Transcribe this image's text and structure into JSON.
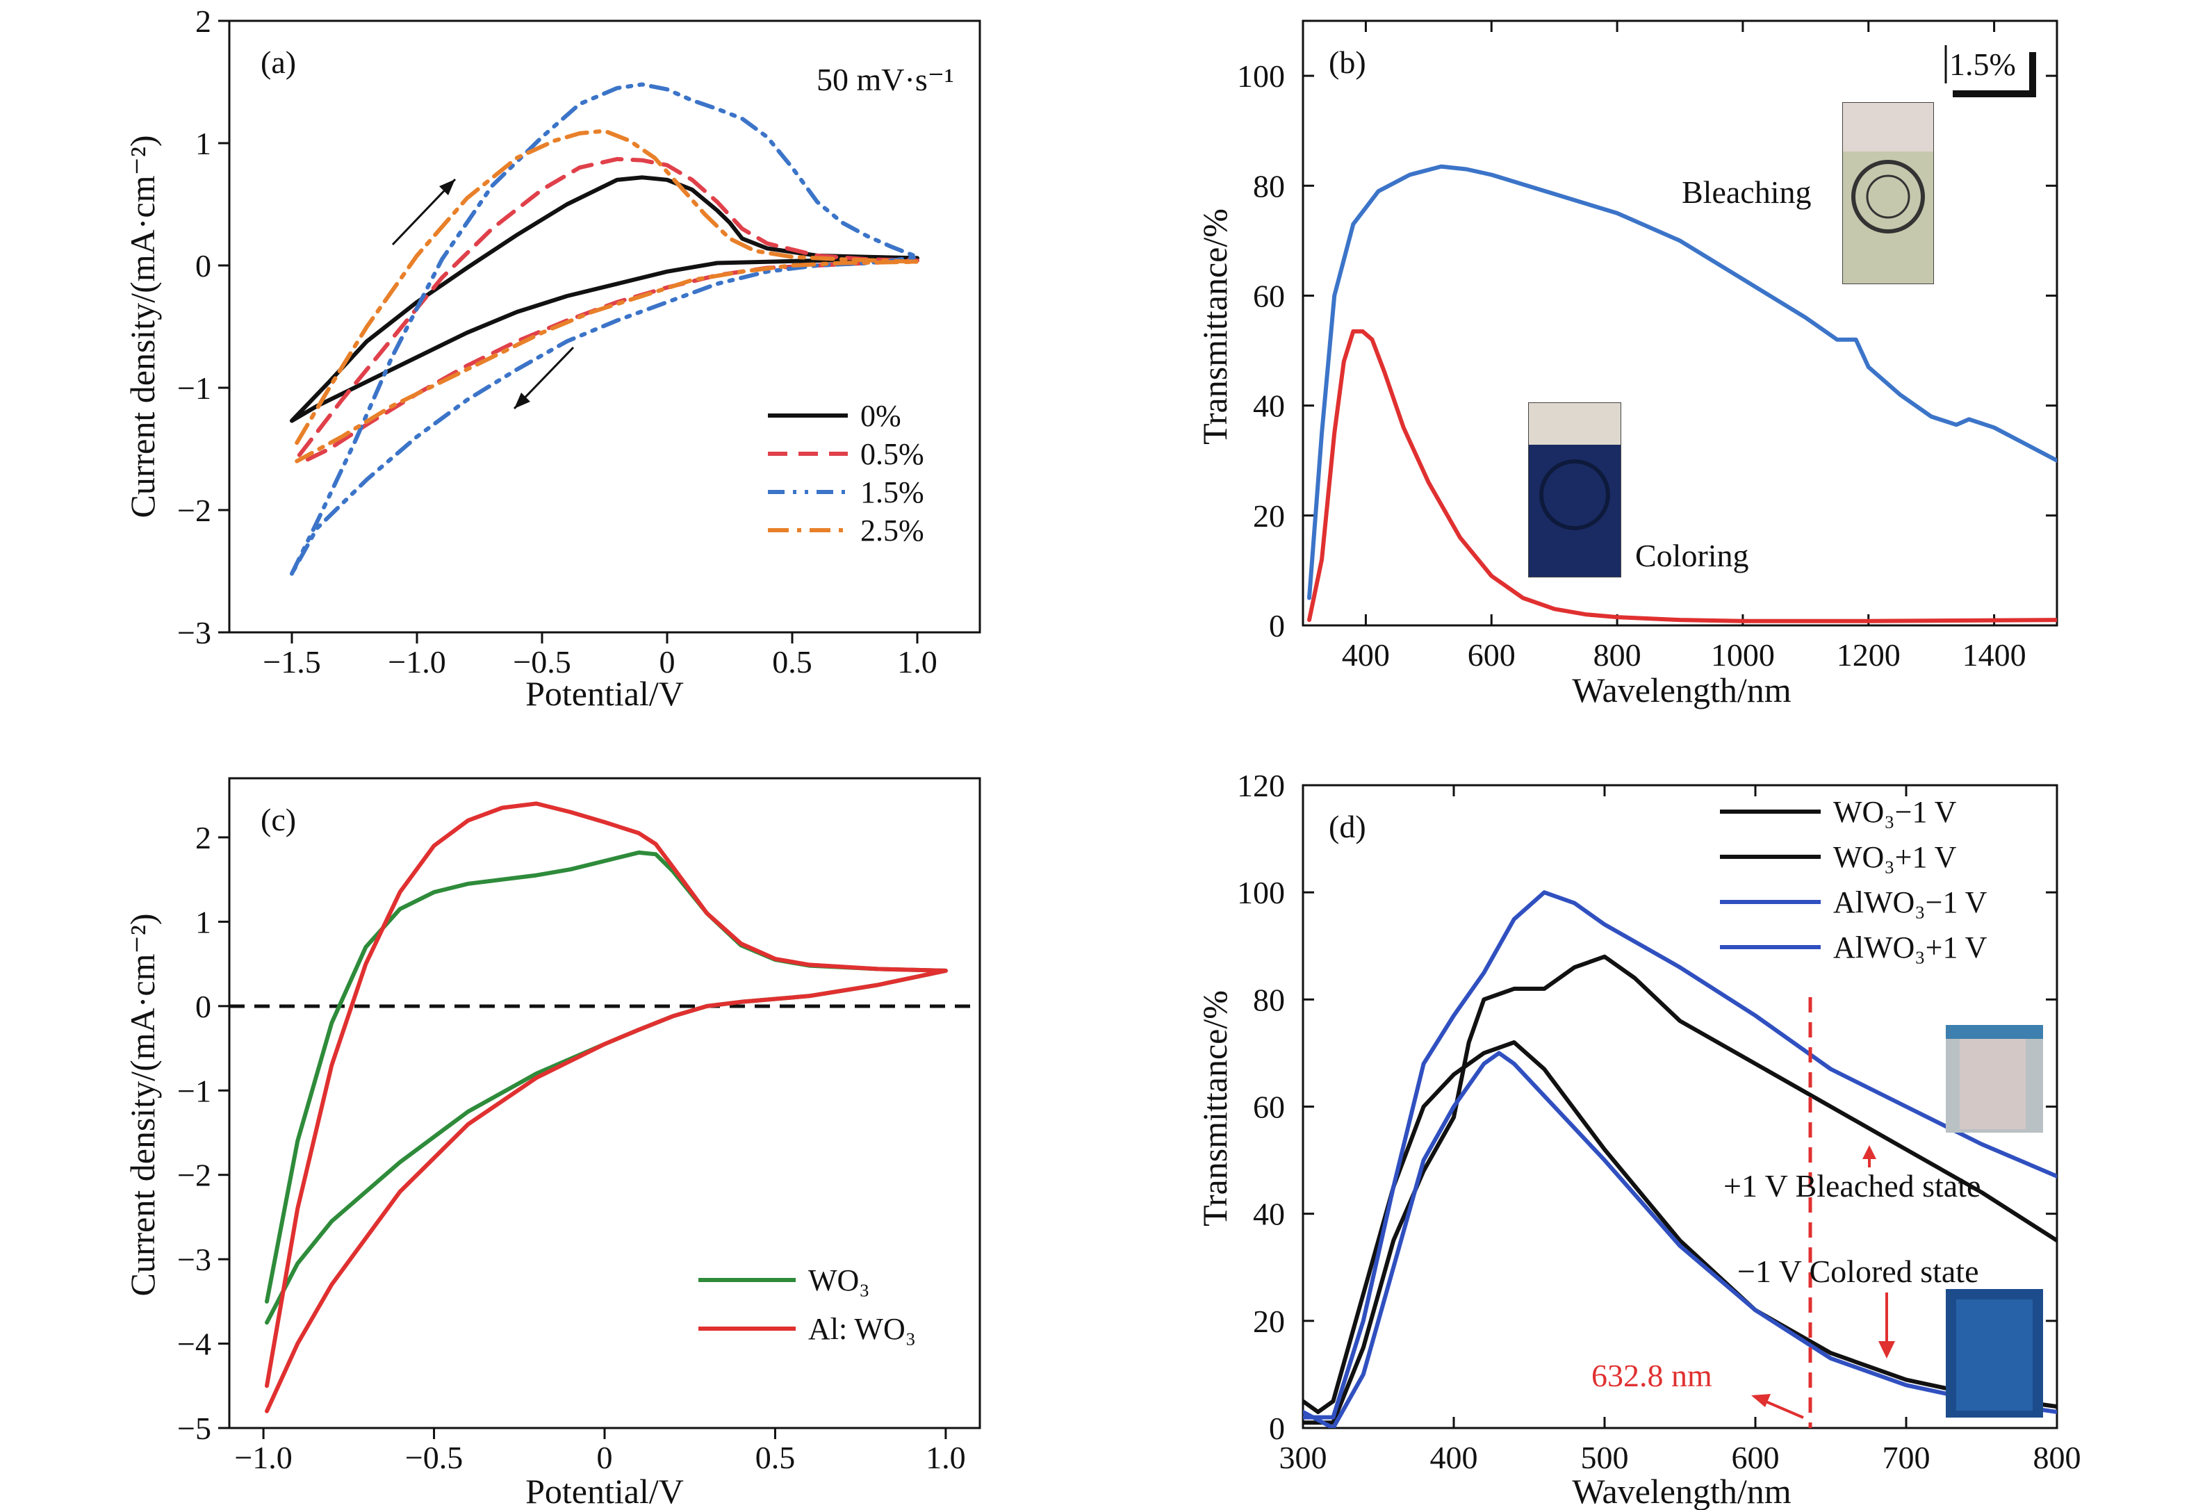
{
  "chart_data": [
    {
      "panel": "(a)",
      "type": "line",
      "xlabel": "Potential/V",
      "ylabel": "Current density/(mA·cm⁻²)",
      "xlim": [
        -1.75,
        1.25
      ],
      "ylim": [
        -3,
        2
      ],
      "xticks": [
        -1.5,
        -1.0,
        -0.5,
        0,
        0.5,
        1.0
      ],
      "xtick_labels": [
        "−1.5",
        "−1.0",
        "−0.5",
        "0",
        "0.5",
        "1.0"
      ],
      "yticks": [
        -3,
        -2,
        -1,
        0,
        1,
        2
      ],
      "ytick_labels": [
        "−3",
        "−2",
        "−1",
        "0",
        "1",
        "2"
      ],
      "legend_position": "bottom-right",
      "annotations": [
        {
          "text": "50 mV·s⁻¹"
        }
      ],
      "series": [
        {
          "name": "0%",
          "color": "#111111",
          "style": "solid",
          "x": [
            -1.5,
            -1.35,
            -1.2,
            -1.0,
            -0.8,
            -0.6,
            -0.4,
            -0.2,
            -0.1,
            0.0,
            0.1,
            0.2,
            0.25,
            0.3,
            0.4,
            0.6,
            0.8,
            1.0,
            0.8,
            0.6,
            0.4,
            0.2,
            0.0,
            -0.2,
            -0.4,
            -0.6,
            -0.8,
            -1.0,
            -1.2,
            -1.4,
            -1.5
          ],
          "y": [
            -1.27,
            -0.95,
            -0.62,
            -0.3,
            -0.02,
            0.25,
            0.5,
            0.7,
            0.72,
            0.7,
            0.62,
            0.45,
            0.35,
            0.22,
            0.14,
            0.08,
            0.07,
            0.06,
            0.05,
            0.04,
            0.03,
            0.02,
            -0.05,
            -0.15,
            -0.25,
            -0.38,
            -0.55,
            -0.75,
            -0.95,
            -1.15,
            -1.27
          ]
        },
        {
          "name": "0.5%",
          "color": "#e0404a",
          "style": "dashed",
          "x": [
            -1.47,
            -1.3,
            -1.1,
            -0.9,
            -0.7,
            -0.5,
            -0.35,
            -0.2,
            -0.1,
            0.0,
            0.1,
            0.2,
            0.3,
            0.4,
            0.6,
            0.8,
            1.0,
            0.8,
            0.6,
            0.4,
            0.2,
            0.0,
            -0.2,
            -0.4,
            -0.6,
            -0.8,
            -1.0,
            -1.2,
            -1.35,
            -1.47
          ],
          "y": [
            -1.55,
            -1.1,
            -0.6,
            -0.1,
            0.3,
            0.62,
            0.8,
            0.87,
            0.86,
            0.82,
            0.7,
            0.52,
            0.3,
            0.18,
            0.08,
            0.05,
            0.04,
            0.02,
            0.0,
            -0.02,
            -0.08,
            -0.18,
            -0.3,
            -0.45,
            -0.62,
            -0.82,
            -1.05,
            -1.3,
            -1.5,
            -1.62
          ]
        },
        {
          "name": "1.5%",
          "color": "#3b74c8",
          "style": "dash-dot-dot",
          "x": [
            -1.5,
            -1.4,
            -1.25,
            -1.1,
            -0.9,
            -0.7,
            -0.5,
            -0.35,
            -0.2,
            -0.1,
            0.0,
            0.1,
            0.2,
            0.3,
            0.4,
            0.5,
            0.6,
            0.7,
            0.8,
            0.9,
            1.0,
            0.9,
            0.8,
            0.6,
            0.4,
            0.2,
            0.0,
            -0.2,
            -0.4,
            -0.6,
            -0.8,
            -1.0,
            -1.2,
            -1.4,
            -1.5
          ],
          "y": [
            -2.52,
            -2.1,
            -1.45,
            -0.75,
            0.05,
            0.65,
            1.05,
            1.32,
            1.45,
            1.48,
            1.44,
            1.35,
            1.28,
            1.2,
            1.05,
            0.8,
            0.52,
            0.35,
            0.24,
            0.15,
            0.07,
            0.04,
            0.02,
            0.0,
            -0.05,
            -0.15,
            -0.3,
            -0.45,
            -0.62,
            -0.85,
            -1.1,
            -1.4,
            -1.75,
            -2.15,
            -2.52
          ]
        },
        {
          "name": "2.5%",
          "color": "#e8802a",
          "style": "dash-dot",
          "x": [
            -1.48,
            -1.35,
            -1.2,
            -1.0,
            -0.8,
            -0.6,
            -0.45,
            -0.35,
            -0.25,
            -0.15,
            -0.05,
            0.05,
            0.15,
            0.25,
            0.35,
            0.5,
            0.7,
            1.0,
            0.7,
            0.5,
            0.3,
            0.1,
            -0.1,
            -0.3,
            -0.5,
            -0.7,
            -0.9,
            -1.1,
            -1.3,
            -1.48
          ],
          "y": [
            -1.45,
            -1.0,
            -0.5,
            0.08,
            0.55,
            0.88,
            1.02,
            1.08,
            1.1,
            1.02,
            0.88,
            0.65,
            0.42,
            0.22,
            0.12,
            0.07,
            0.05,
            0.03,
            0.02,
            0.0,
            -0.05,
            -0.12,
            -0.25,
            -0.38,
            -0.55,
            -0.75,
            -0.95,
            -1.15,
            -1.4,
            -1.6
          ]
        }
      ]
    },
    {
      "panel": "(b)",
      "type": "line",
      "xlabel": "Wavelength/nm",
      "ylabel": "Transmittance/%",
      "xlim": [
        300,
        1500
      ],
      "ylim": [
        0,
        110
      ],
      "xticks": [
        400,
        600,
        800,
        1000,
        1200,
        1400
      ],
      "xtick_labels": [
        "400",
        "600",
        "800",
        "1000",
        "1200",
        "1400"
      ],
      "yticks": [
        0,
        20,
        40,
        60,
        80,
        100
      ],
      "ytick_labels": [
        "0",
        "20",
        "40",
        "60",
        "80",
        "100"
      ],
      "annotations": [
        {
          "text": "1.5%"
        },
        {
          "text": "Bleaching"
        },
        {
          "text": "Coloring"
        }
      ],
      "series": [
        {
          "label": "Bleaching",
          "color": "#3b74c8",
          "x": [
            310,
            330,
            350,
            380,
            420,
            470,
            520,
            560,
            600,
            700,
            800,
            900,
            1000,
            1100,
            1150,
            1180,
            1200,
            1250,
            1300,
            1340,
            1360,
            1400,
            1450,
            1500
          ],
          "y": [
            5,
            35,
            60,
            73,
            79,
            82,
            83.5,
            83,
            82,
            78.5,
            75,
            70,
            63,
            56,
            52,
            52,
            47,
            42,
            38,
            36.5,
            37.5,
            36,
            33,
            30
          ]
        },
        {
          "label": "Coloring",
          "color": "#e03030",
          "x": [
            310,
            330,
            350,
            365,
            380,
            395,
            410,
            430,
            460,
            500,
            550,
            600,
            650,
            700,
            750,
            800,
            900,
            1000,
            1200,
            1500
          ],
          "y": [
            1,
            12,
            35,
            48,
            53.5,
            53.5,
            52,
            46,
            36,
            26,
            16,
            9,
            5,
            3,
            2,
            1.5,
            1,
            0.8,
            0.8,
            1
          ]
        }
      ]
    },
    {
      "panel": "(c)",
      "type": "line",
      "xlabel": "Potential/V",
      "ylabel": "Current density/(mA·cm⁻²)",
      "xlim": [
        -1.1,
        1.1
      ],
      "ylim": [
        -5,
        2.7
      ],
      "xticks": [
        -1.0,
        -0.5,
        0,
        0.5,
        1.0
      ],
      "xtick_labels": [
        "−1.0",
        "−0.5",
        "0",
        "0.5",
        "1.0"
      ],
      "yticks": [
        -5,
        -4,
        -3,
        -2,
        -1,
        0,
        1,
        2
      ],
      "ytick_labels": [
        "−5",
        "−4",
        "−3",
        "−2",
        "−1",
        "0",
        "1",
        "2"
      ],
      "legend_position": "bottom-right",
      "series": [
        {
          "name": "WO₃",
          "color": "#2e8b3a",
          "x": [
            -0.99,
            -0.9,
            -0.8,
            -0.7,
            -0.6,
            -0.5,
            -0.4,
            -0.3,
            -0.2,
            -0.1,
            0.0,
            0.1,
            0.15,
            0.2,
            0.3,
            0.4,
            0.5,
            0.6,
            0.8,
            1.0,
            0.8,
            0.6,
            0.4,
            0.3,
            0.2,
            0.1,
            0.0,
            -0.2,
            -0.4,
            -0.6,
            -0.8,
            -0.9,
            -0.99
          ],
          "y": [
            -3.5,
            -1.6,
            -0.2,
            0.7,
            1.15,
            1.35,
            1.45,
            1.5,
            1.55,
            1.62,
            1.72,
            1.82,
            1.8,
            1.6,
            1.1,
            0.72,
            0.55,
            0.48,
            0.44,
            0.42,
            0.25,
            0.12,
            0.05,
            0.0,
            -0.12,
            -0.28,
            -0.45,
            -0.8,
            -1.25,
            -1.85,
            -2.55,
            -3.05,
            -3.75
          ]
        },
        {
          "name": "Al: WO₃",
          "color": "#e03030",
          "x": [
            -0.99,
            -0.9,
            -0.8,
            -0.7,
            -0.6,
            -0.5,
            -0.4,
            -0.3,
            -0.2,
            -0.1,
            0.0,
            0.1,
            0.15,
            0.2,
            0.3,
            0.4,
            0.5,
            0.6,
            0.8,
            1.0,
            0.8,
            0.6,
            0.4,
            0.3,
            0.2,
            0.1,
            0.0,
            -0.2,
            -0.4,
            -0.6,
            -0.8,
            -0.9,
            -0.99
          ],
          "y": [
            -4.5,
            -2.4,
            -0.7,
            0.5,
            1.35,
            1.9,
            2.2,
            2.35,
            2.4,
            2.3,
            2.18,
            2.05,
            1.92,
            1.65,
            1.1,
            0.74,
            0.56,
            0.49,
            0.44,
            0.42,
            0.25,
            0.12,
            0.05,
            0.0,
            -0.12,
            -0.28,
            -0.45,
            -0.85,
            -1.4,
            -2.2,
            -3.3,
            -4.0,
            -4.8
          ]
        }
      ]
    },
    {
      "panel": "(d)",
      "type": "line",
      "xlabel": "Wavelength/nm",
      "ylabel": "Transmittance/%",
      "xlim": [
        300,
        800
      ],
      "ylim": [
        0,
        120
      ],
      "xticks": [
        300,
        400,
        500,
        600,
        700,
        800
      ],
      "xtick_labels": [
        "300",
        "400",
        "500",
        "600",
        "700",
        "800"
      ],
      "yticks": [
        0,
        20,
        40,
        60,
        80,
        100,
        120
      ],
      "ytick_labels": [
        "0",
        "20",
        "40",
        "60",
        "80",
        "100",
        "120"
      ],
      "legend_position": "top-right",
      "annotations": [
        {
          "text": "+1 V Bleached state"
        },
        {
          "text": "−1 V Colored state"
        },
        {
          "text": "632.8 nm"
        }
      ],
      "series": [
        {
          "name": "WO₃−1 V",
          "color": "#111111",
          "x": [
            300,
            310,
            320,
            340,
            360,
            380,
            400,
            420,
            440,
            460,
            500,
            550,
            600,
            650,
            700,
            750,
            800
          ],
          "y": [
            5,
            3,
            5,
            25,
            45,
            60,
            66,
            70,
            72,
            67,
            52,
            35,
            22,
            14,
            9,
            6,
            4
          ]
        },
        {
          "name": "WO₃+1 V",
          "color": "#111111",
          "x": [
            300,
            320,
            340,
            360,
            380,
            400,
            410,
            420,
            440,
            460,
            480,
            500,
            520,
            550,
            600,
            650,
            700,
            750,
            800
          ],
          "y": [
            1,
            1,
            15,
            35,
            48,
            58,
            72,
            80,
            82,
            82,
            86,
            88,
            84,
            76,
            68,
            60,
            52,
            44,
            35
          ]
        },
        {
          "name": "AlWO₃−1 V",
          "color": "#3050c0",
          "x": [
            300,
            320,
            340,
            360,
            380,
            400,
            420,
            430,
            440,
            460,
            500,
            550,
            600,
            650,
            700,
            750,
            800
          ],
          "y": [
            3,
            0,
            10,
            30,
            50,
            60,
            68,
            70,
            68,
            62,
            50,
            34,
            22,
            13,
            8,
            5,
            3
          ]
        },
        {
          "name": "AlWO₃+1 V",
          "color": "#3050c0",
          "x": [
            300,
            320,
            340,
            360,
            380,
            400,
            420,
            440,
            460,
            480,
            500,
            550,
            600,
            650,
            700,
            750,
            800
          ],
          "y": [
            2,
            2,
            20,
            45,
            68,
            77,
            85,
            95,
            100,
            98,
            94,
            86,
            77,
            67,
            60,
            53,
            47
          ]
        }
      ]
    }
  ]
}
